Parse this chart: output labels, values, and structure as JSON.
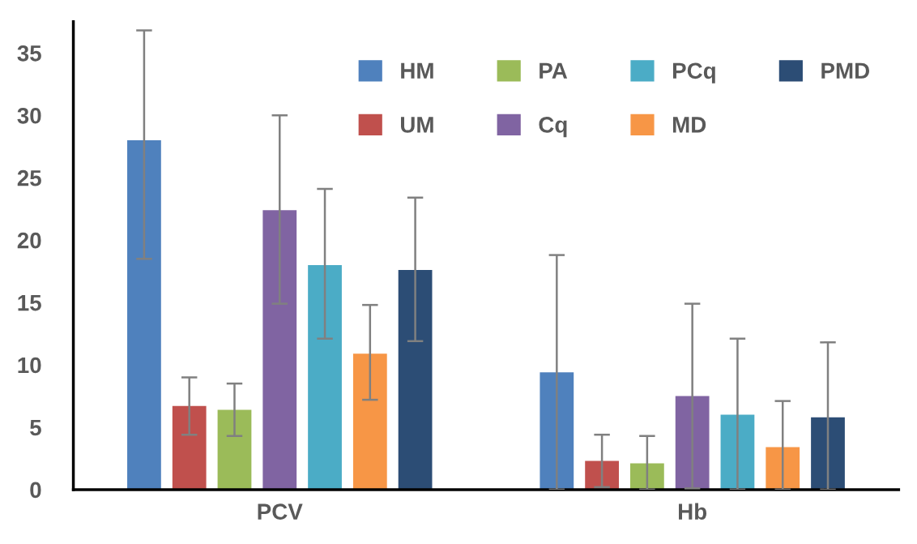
{
  "chart_data": {
    "type": "bar",
    "categories": [
      "PCV",
      "Hb"
    ],
    "series": [
      {
        "name": "HM",
        "color": "#4f81bd",
        "values": [
          28.0,
          9.4
        ],
        "errors": [
          [
            18.5,
            36.8
          ],
          [
            0,
            18.8
          ]
        ]
      },
      {
        "name": "UM",
        "color": "#c0504d",
        "values": [
          6.7,
          2.3
        ],
        "errors": [
          [
            4.4,
            9.0
          ],
          [
            0.2,
            4.4
          ]
        ]
      },
      {
        "name": "PA",
        "color": "#9bbb59",
        "values": [
          6.4,
          2.1
        ],
        "errors": [
          [
            4.3,
            8.5
          ],
          [
            0,
            4.3
          ]
        ]
      },
      {
        "name": "Cq",
        "color": "#8064a2",
        "values": [
          22.4,
          7.5
        ],
        "errors": [
          [
            14.9,
            30.0
          ],
          [
            0.1,
            14.9
          ]
        ]
      },
      {
        "name": "PCq",
        "color": "#4bacc6",
        "values": [
          18.0,
          6.0
        ],
        "errors": [
          [
            12.1,
            24.1
          ],
          [
            0,
            12.1
          ]
        ]
      },
      {
        "name": "MD",
        "color": "#f79646",
        "values": [
          10.9,
          3.4
        ],
        "errors": [
          [
            7.2,
            14.8
          ],
          [
            0,
            7.1
          ]
        ]
      },
      {
        "name": "PMD",
        "color": "#2c4d75",
        "values": [
          17.6,
          5.8
        ],
        "errors": [
          [
            11.9,
            23.4
          ],
          [
            0,
            11.8
          ]
        ]
      }
    ],
    "ylim": [
      0,
      37.5
    ],
    "yticks": [
      0,
      5,
      10,
      15,
      20,
      25,
      30,
      35
    ],
    "grid": false,
    "legend": "top right"
  }
}
